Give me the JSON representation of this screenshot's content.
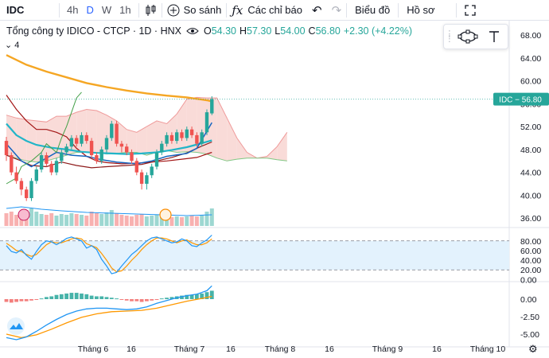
{
  "toolbar": {
    "symbol": "IDC",
    "intervals": [
      {
        "label": "4h",
        "active": false
      },
      {
        "label": "D",
        "active": true
      },
      {
        "label": "W",
        "active": false
      },
      {
        "label": "1h",
        "active": false
      }
    ],
    "compare_label": "So sánh",
    "indicators_label": "Các chỉ báo",
    "chart_type_label": "Biểu đồ",
    "profile_label": "Hồ sơ"
  },
  "legend": {
    "name": "Tổng công ty IDICO - CTCP · 1D · HNX",
    "o_label": "O",
    "o": "54.30",
    "h_label": "H",
    "h": "57.30",
    "l_label": "L",
    "l": "54.00",
    "c_label": "C",
    "c": "56.80",
    "change": "+2.30 (+4.22%)",
    "indicator_count": "4"
  },
  "colors": {
    "up": "#26a69a",
    "down": "#ef5350",
    "ma": "#f5a623",
    "cyan": "#22b5c8",
    "blue": "#1565c0",
    "darkred": "#a31515",
    "green": "#43a047",
    "cloud_bear": "#f8d7d4",
    "cloud_bull": "#d8f0dd",
    "price_label": "#26a69a",
    "stoch_band": "#e3f2fd"
  },
  "chart_data": {
    "type": "candlestick",
    "symbol": "IDC",
    "last_price_label": "IDC − 56.80",
    "last_price": 56.8,
    "price_axis": {
      "ticks": [
        "68.00",
        "64.00",
        "60.00",
        "56.00",
        "52.00",
        "48.00",
        "44.00",
        "40.00",
        "36.00"
      ],
      "range": [
        34.5,
        70.5
      ]
    },
    "x_axis": {
      "labels": [
        "Tháng 6",
        "16",
        "Tháng 7",
        "16",
        "Tháng 8",
        "16",
        "Tháng 9",
        "16",
        "Tháng 10"
      ]
    },
    "candles": [
      [
        49.5,
        47.0,
        50.2,
        46.0
      ],
      [
        47.0,
        44.0,
        47.5,
        43.5
      ],
      [
        44.0,
        42.5,
        45.0,
        42.0
      ],
      [
        42.5,
        41.0,
        43.0,
        40.0
      ],
      [
        41.0,
        39.5,
        41.5,
        39.0
      ],
      [
        39.5,
        42.5,
        43.0,
        39.0
      ],
      [
        42.5,
        44.5,
        45.0,
        42.0
      ],
      [
        44.5,
        47.0,
        47.5,
        44.0
      ],
      [
        47.0,
        45.5,
        47.5,
        45.0
      ],
      [
        45.5,
        44.0,
        46.0,
        43.5
      ],
      [
        44.0,
        46.0,
        46.5,
        43.5
      ],
      [
        46.0,
        47.5,
        48.0,
        45.5
      ],
      [
        47.5,
        48.5,
        49.0,
        47.0
      ],
      [
        48.5,
        50.0,
        50.5,
        48.0
      ],
      [
        50.0,
        49.0,
        50.5,
        48.5
      ],
      [
        49.0,
        50.5,
        51.0,
        48.5
      ],
      [
        50.5,
        49.5,
        51.0,
        49.0
      ],
      [
        49.5,
        47.0,
        50.0,
        46.5
      ],
      [
        47.0,
        46.0,
        47.5,
        45.5
      ],
      [
        46.0,
        48.0,
        48.5,
        45.5
      ],
      [
        48.0,
        50.0,
        50.5,
        47.5
      ],
      [
        50.0,
        52.5,
        53.0,
        49.5
      ],
      [
        52.5,
        49.0,
        53.0,
        48.5
      ],
      [
        49.0,
        48.5,
        49.5,
        47.5
      ],
      [
        48.5,
        47.5,
        49.0,
        47.0
      ],
      [
        47.5,
        46.0,
        48.0,
        45.5
      ],
      [
        46.0,
        44.0,
        46.5,
        43.5
      ],
      [
        44.0,
        42.0,
        44.5,
        41.0
      ],
      [
        42.0,
        43.5,
        44.0,
        41.0
      ],
      [
        43.5,
        45.0,
        45.5,
        43.0
      ],
      [
        45.0,
        47.5,
        48.0,
        44.5
      ],
      [
        47.5,
        49.0,
        49.5,
        47.0
      ],
      [
        49.0,
        50.5,
        51.0,
        48.5
      ],
      [
        50.5,
        49.5,
        51.0,
        49.0
      ],
      [
        49.5,
        51.0,
        51.5,
        49.0
      ],
      [
        51.0,
        50.0,
        51.5,
        49.5
      ],
      [
        50.0,
        51.5,
        52.0,
        49.5
      ],
      [
        51.5,
        50.5,
        52.0,
        50.0
      ],
      [
        50.5,
        49.0,
        51.0,
        48.5
      ],
      [
        49.0,
        51.0,
        51.5,
        48.5
      ],
      [
        51.0,
        54.5,
        55.0,
        50.5
      ],
      [
        54.3,
        56.8,
        57.3,
        54.0
      ]
    ],
    "ma_line": [
      [
        0,
        64.5
      ],
      [
        4,
        62.8
      ],
      [
        8,
        61.6
      ],
      [
        12,
        60.6
      ],
      [
        16,
        59.6
      ],
      [
        20,
        58.9
      ],
      [
        24,
        58.3
      ],
      [
        28,
        57.8
      ],
      [
        32,
        57.4
      ],
      [
        36,
        57.1
      ],
      [
        40,
        56.6
      ],
      [
        41,
        56.4
      ]
    ],
    "baseline": [
      [
        0,
        47.0
      ],
      [
        3,
        46.0
      ],
      [
        5,
        45.2
      ],
      [
        8,
        45.0
      ],
      [
        11,
        45.8
      ],
      [
        14,
        45.2
      ],
      [
        17,
        44.8
      ],
      [
        20,
        45.0
      ],
      [
        24,
        45.2
      ],
      [
        27,
        45.4
      ],
      [
        30,
        46.0
      ],
      [
        33,
        46.6
      ],
      [
        36,
        47.4
      ],
      [
        39,
        48.6
      ],
      [
        41,
        49.3
      ]
    ],
    "conversion": [
      [
        0,
        49.0
      ],
      [
        3,
        46.0
      ],
      [
        5,
        45.0
      ],
      [
        8,
        46.5
      ],
      [
        10,
        47.5
      ],
      [
        13,
        47.0
      ],
      [
        16,
        46.8
      ],
      [
        19,
        46.2
      ],
      [
        22,
        45.8
      ],
      [
        26,
        45.5
      ],
      [
        29,
        46.0
      ],
      [
        32,
        46.8
      ],
      [
        36,
        47.3
      ],
      [
        38,
        48.2
      ],
      [
        41,
        52.7
      ]
    ],
    "cyan_line": [
      [
        0,
        52.5
      ],
      [
        2,
        50.5
      ],
      [
        4,
        49.5
      ],
      [
        6,
        48.8
      ],
      [
        9,
        48.3
      ],
      [
        12,
        48.0
      ],
      [
        15,
        47.6
      ],
      [
        18,
        47.4
      ],
      [
        21,
        47.3
      ],
      [
        24,
        47.2
      ],
      [
        27,
        47.3
      ],
      [
        30,
        47.5
      ],
      [
        33,
        47.9
      ],
      [
        36,
        48.4
      ],
      [
        39,
        49.1
      ],
      [
        41,
        49.6
      ]
    ],
    "darkred_line": [
      [
        0,
        57.5
      ],
      [
        2,
        55.0
      ],
      [
        4,
        53.0
      ],
      [
        6,
        51.5
      ],
      [
        8,
        51.5
      ],
      [
        10,
        51.0
      ],
      [
        12,
        50.2
      ],
      [
        14,
        48.2
      ],
      [
        16,
        46.8
      ],
      [
        18,
        46.0
      ],
      [
        20,
        45.7
      ],
      [
        23,
        45.5
      ],
      [
        26,
        45.6
      ],
      [
        29,
        45.8
      ],
      [
        32,
        46.0
      ],
      [
        35,
        46.3
      ],
      [
        38,
        46.6
      ],
      [
        41,
        47.5
      ]
    ],
    "lagging_span": [
      [
        0,
        42.0
      ],
      [
        2,
        43.0
      ],
      [
        3,
        45.0
      ],
      [
        5,
        46.0
      ],
      [
        7,
        47.5
      ],
      [
        8,
        49.0
      ],
      [
        10,
        47.5
      ],
      [
        11,
        50.0
      ],
      [
        12,
        52.0
      ],
      [
        13,
        54.5
      ],
      [
        14,
        57.0
      ],
      [
        15,
        58.0
      ]
    ],
    "cloud": {
      "x": [
        0,
        2,
        4,
        6,
        8,
        10,
        12,
        14,
        16,
        18,
        20,
        22,
        24,
        26,
        28,
        30,
        32,
        34,
        36,
        38,
        40,
        42,
        44,
        46,
        48,
        50,
        52,
        54,
        56
      ],
      "span_a": [
        54.0,
        53.5,
        53.2,
        53.0,
        52.8,
        53.8,
        53.8,
        54.5,
        55.0,
        54.8,
        54.0,
        53.0,
        51.5,
        51.0,
        52.0,
        53.0,
        52.5,
        54.2,
        56.8,
        57.1,
        57.0,
        57.0,
        53.5,
        50.0,
        47.5,
        46.5,
        46.8,
        48.5,
        51.0
      ],
      "span_b": [
        47.0,
        46.5,
        46.0,
        45.8,
        46.0,
        46.5,
        47.0,
        47.5,
        47.5,
        47.5,
        47.2,
        47.3,
        47.5,
        47.5,
        47.0,
        47.5,
        47.8,
        47.5,
        47.6,
        47.5,
        47.2,
        46.5,
        46.0,
        46.3,
        46.5,
        46.5,
        46.5,
        46.2,
        46.0
      ]
    },
    "volume": [
      16,
      18,
      14,
      12,
      20,
      22,
      18,
      15,
      14,
      16,
      13,
      15,
      14,
      16,
      15,
      14,
      13,
      18,
      16,
      15,
      17,
      20,
      16,
      14,
      13,
      12,
      14,
      15,
      12,
      13,
      14,
      12,
      13,
      11,
      12,
      11,
      12,
      13,
      12,
      14,
      18,
      22
    ],
    "volume_ma": [
      [
        0,
        22
      ],
      [
        3,
        24
      ],
      [
        7,
        21
      ],
      [
        11,
        19
      ],
      [
        16,
        17
      ],
      [
        21,
        16
      ],
      [
        26,
        15
      ],
      [
        31,
        14
      ],
      [
        36,
        13
      ],
      [
        41,
        14
      ]
    ],
    "stochastic": {
      "axis_labels": [
        "80.00",
        "60.00",
        "40.00",
        "20.00",
        "0.00"
      ],
      "k": [
        [
          0,
          70
        ],
        [
          1,
          58
        ],
        [
          2,
          55
        ],
        [
          3,
          62
        ],
        [
          4,
          50
        ],
        [
          5,
          42
        ],
        [
          6,
          58
        ],
        [
          7,
          72
        ],
        [
          8,
          80
        ],
        [
          9,
          78
        ],
        [
          10,
          72
        ],
        [
          11,
          78
        ],
        [
          12,
          85
        ],
        [
          13,
          88
        ],
        [
          14,
          84
        ],
        [
          15,
          80
        ],
        [
          16,
          65
        ],
        [
          17,
          70
        ],
        [
          18,
          62
        ],
        [
          19,
          42
        ],
        [
          20,
          28
        ],
        [
          21,
          12
        ],
        [
          22,
          15
        ],
        [
          23,
          28
        ],
        [
          24,
          40
        ],
        [
          25,
          52
        ],
        [
          26,
          60
        ],
        [
          27,
          70
        ],
        [
          28,
          80
        ],
        [
          29,
          86
        ],
        [
          30,
          88
        ],
        [
          31,
          84
        ],
        [
          32,
          80
        ],
        [
          33,
          76
        ],
        [
          34,
          78
        ],
        [
          35,
          84
        ],
        [
          36,
          80
        ],
        [
          37,
          70
        ],
        [
          38,
          68
        ],
        [
          39,
          76
        ],
        [
          40,
          82
        ],
        [
          41,
          92
        ]
      ],
      "d": [
        [
          0,
          75
        ],
        [
          1,
          68
        ],
        [
          2,
          60
        ],
        [
          3,
          58
        ],
        [
          4,
          52
        ],
        [
          5,
          48
        ],
        [
          6,
          52
        ],
        [
          7,
          62
        ],
        [
          8,
          72
        ],
        [
          9,
          78
        ],
        [
          10,
          76
        ],
        [
          11,
          76
        ],
        [
          12,
          80
        ],
        [
          13,
          84
        ],
        [
          14,
          86
        ],
        [
          15,
          84
        ],
        [
          16,
          74
        ],
        [
          17,
          70
        ],
        [
          18,
          66
        ],
        [
          19,
          54
        ],
        [
          20,
          40
        ],
        [
          21,
          24
        ],
        [
          22,
          16
        ],
        [
          23,
          18
        ],
        [
          24,
          28
        ],
        [
          25,
          40
        ],
        [
          26,
          50
        ],
        [
          27,
          62
        ],
        [
          28,
          72
        ],
        [
          29,
          80
        ],
        [
          30,
          86
        ],
        [
          31,
          86
        ],
        [
          32,
          84
        ],
        [
          33,
          80
        ],
        [
          34,
          76
        ],
        [
          35,
          80
        ],
        [
          36,
          82
        ],
        [
          37,
          76
        ],
        [
          38,
          72
        ],
        [
          39,
          72
        ],
        [
          40,
          76
        ],
        [
          41,
          84
        ]
      ]
    },
    "macd": {
      "axis_labels": [
        "0.00",
        "-2.50",
        "-5.00"
      ],
      "hist": [
        -0.4,
        -0.5,
        -0.4,
        -0.3,
        -0.3,
        -0.2,
        -0.1,
        0.1,
        0.3,
        0.4,
        0.6,
        0.7,
        0.8,
        0.9,
        0.9,
        0.8,
        0.7,
        0.5,
        0.4,
        0.4,
        0.3,
        0.2,
        0.1,
        -0.1,
        -0.2,
        -0.3,
        -0.3,
        -0.4,
        -0.3,
        -0.2,
        -0.1,
        0.1,
        0.2,
        0.3,
        0.4,
        0.5,
        0.6,
        0.6,
        0.7,
        0.8,
        1.0,
        1.2
      ],
      "macd_line": [
        [
          0,
          -5.5
        ],
        [
          2,
          -5.8
        ],
        [
          4,
          -5.4
        ],
        [
          6,
          -4.6
        ],
        [
          8,
          -3.7
        ],
        [
          10,
          -2.9
        ],
        [
          12,
          -2.2
        ],
        [
          14,
          -1.7
        ],
        [
          16,
          -1.4
        ],
        [
          18,
          -1.3
        ],
        [
          20,
          -1.3
        ],
        [
          22,
          -1.4
        ],
        [
          24,
          -1.5
        ],
        [
          26,
          -1.4
        ],
        [
          28,
          -1.1
        ],
        [
          30,
          -0.6
        ],
        [
          32,
          -0.2
        ],
        [
          34,
          0.2
        ],
        [
          36,
          0.5
        ],
        [
          38,
          0.7
        ],
        [
          40,
          1.2
        ],
        [
          41,
          1.9
        ]
      ],
      "signal_line": [
        [
          0,
          -5.0
        ],
        [
          3,
          -5.5
        ],
        [
          6,
          -5.1
        ],
        [
          9,
          -4.3
        ],
        [
          12,
          -3.4
        ],
        [
          15,
          -2.6
        ],
        [
          18,
          -2.1
        ],
        [
          21,
          -1.8
        ],
        [
          24,
          -1.7
        ],
        [
          27,
          -1.6
        ],
        [
          30,
          -1.3
        ],
        [
          33,
          -0.8
        ],
        [
          36,
          -0.3
        ],
        [
          39,
          0.1
        ],
        [
          41,
          0.4
        ]
      ]
    }
  }
}
